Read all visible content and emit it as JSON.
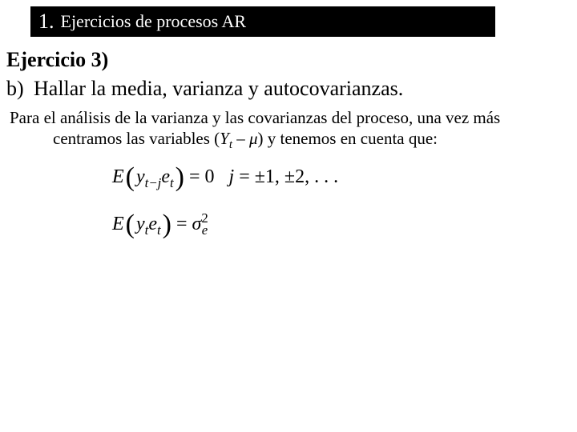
{
  "header": {
    "number": "1.",
    "title": "Ejercicios de procesos AR"
  },
  "exercise": {
    "title": "Ejercicio 3)",
    "item_label": "b)",
    "item_text": "Hallar la media, varianza y autocovarianzas."
  },
  "paragraph": {
    "pre": "Para el análisis de la varianza y las covarianzas del proceso, una vez más centramos las variables (",
    "math_var": "Y",
    "math_sub": "t",
    "math_minus": " – ",
    "math_mu": "μ",
    "post": ") y tenemos en cuenta que:"
  },
  "equations": {
    "e1": {
      "E": "E",
      "y": "y",
      "ysub": "t−j",
      "e": "e",
      "esub": "t",
      "eq": "=",
      "rhs": "0",
      "cond_j": "j",
      "cond_eq": " = ",
      "cond_vals": "±1, ±2, . . ."
    },
    "e2": {
      "E": "E",
      "y": "y",
      "ysub": "t",
      "e": "e",
      "esub": "t",
      "eq": "=",
      "sigma": "σ",
      "sigma_sup": "2",
      "sigma_sub": "e"
    }
  },
  "colors": {
    "bg": "#ffffff",
    "header_bg": "#000000",
    "header_fg": "#ffffff",
    "text": "#000000"
  },
  "fonts": {
    "body_family": "Times New Roman",
    "header_num_size_pt": 20,
    "header_text_size_pt": 17,
    "title_size_pt": 20,
    "sub_size_pt": 20,
    "para_size_pt": 16,
    "eq_size_pt": 18
  }
}
